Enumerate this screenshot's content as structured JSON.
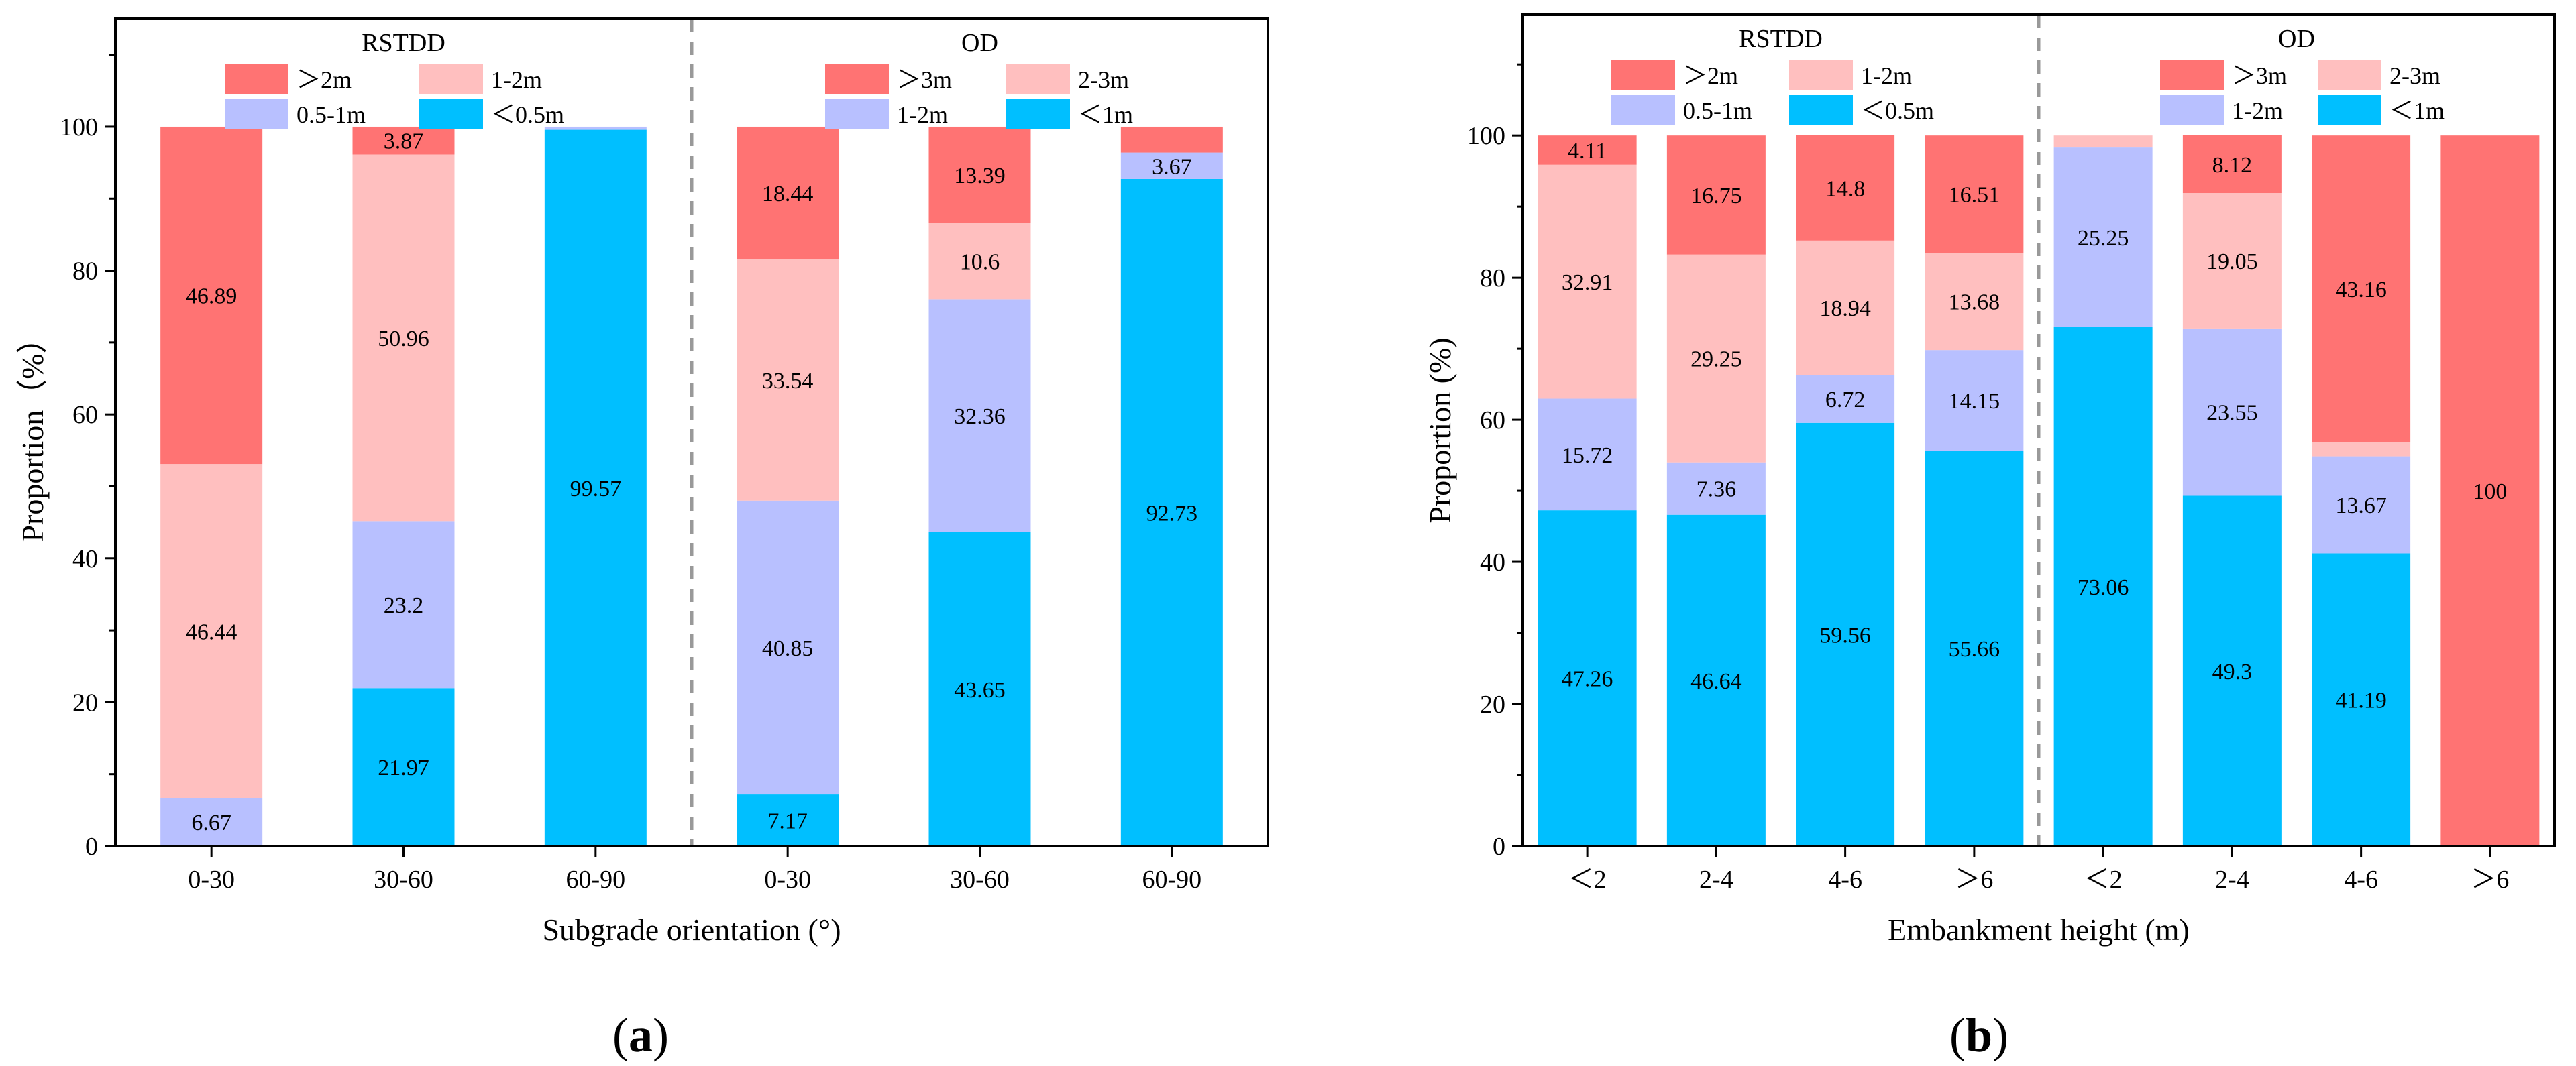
{
  "colors": {
    "red": "#ff7373",
    "pink": "#ffbfbf",
    "lavender": "#b8c0ff",
    "cyan": "#00bfff"
  },
  "chart_data": [
    {
      "id": "a",
      "type": "bar",
      "stacked": true,
      "caption_letter": "a",
      "xlabel": "Subgrade orientation (°)",
      "ylabel": "Proportion（%）",
      "ylim": [
        0,
        115
      ],
      "yticks": [
        0,
        20,
        40,
        60,
        80,
        100
      ],
      "categories": [
        "0-30",
        "30-60",
        "60-90",
        "0-30",
        "30-60",
        "60-90"
      ],
      "groups": [
        {
          "title": "RSTDD",
          "bar_indices": [
            0,
            1,
            2
          ],
          "legend": [
            {
              "label": "＞2m",
              "color": "red"
            },
            {
              "label": "1-2m",
              "color": "pink"
            },
            {
              "label": "0.5-1m",
              "color": "lavender"
            },
            {
              "label": "＜0.5m",
              "color": "cyan"
            }
          ]
        },
        {
          "title": "OD",
          "bar_indices": [
            3,
            4,
            5
          ],
          "legend": [
            {
              "label": "＞3m",
              "color": "red"
            },
            {
              "label": "2-3m",
              "color": "pink"
            },
            {
              "label": "1-2m",
              "color": "lavender"
            },
            {
              "label": "＜1m",
              "color": "cyan"
            }
          ]
        }
      ],
      "series_bottom_to_top": [
        {
          "color": "cyan",
          "values": [
            0,
            21.97,
            99.57,
            7.17,
            43.65,
            92.73
          ],
          "labels": [
            "",
            "21.97",
            "99.57",
            "7.17",
            "43.65",
            "92.73"
          ]
        },
        {
          "color": "lavender",
          "values": [
            6.67,
            23.2,
            0.43,
            40.85,
            32.36,
            3.67
          ],
          "labels": [
            "6.67",
            "23.2",
            "",
            "40.85",
            "32.36",
            "3.67"
          ]
        },
        {
          "color": "pink",
          "values": [
            46.44,
            50.96,
            0,
            33.54,
            10.6,
            0
          ],
          "labels": [
            "46.44",
            "50.96",
            "",
            "33.54",
            "10.6",
            ""
          ]
        },
        {
          "color": "red",
          "values": [
            46.89,
            3.87,
            0,
            18.44,
            13.39,
            3.6
          ],
          "labels": [
            "46.89",
            "3.87",
            "",
            "18.44",
            "13.39",
            ""
          ]
        }
      ]
    },
    {
      "id": "b",
      "type": "bar",
      "stacked": true,
      "caption_letter": "b",
      "xlabel": "Embankment height (m)",
      "ylabel": "Proportion (%)",
      "ylim": [
        0,
        117
      ],
      "yticks": [
        0,
        20,
        40,
        60,
        80,
        100
      ],
      "categories": [
        "＜2",
        "2-4",
        "4-6",
        "＞6",
        "＜2",
        "2-4",
        "4-6",
        "＞6"
      ],
      "groups": [
        {
          "title": "RSTDD",
          "bar_indices": [
            0,
            1,
            2,
            3
          ],
          "legend": [
            {
              "label": "＞2m",
              "color": "red"
            },
            {
              "label": "1-2m",
              "color": "pink"
            },
            {
              "label": "0.5-1m",
              "color": "lavender"
            },
            {
              "label": "＜0.5m",
              "color": "cyan"
            }
          ]
        },
        {
          "title": "OD",
          "bar_indices": [
            4,
            5,
            6,
            7
          ],
          "legend": [
            {
              "label": "＞3m",
              "color": "red"
            },
            {
              "label": "2-3m",
              "color": "pink"
            },
            {
              "label": "1-2m",
              "color": "lavender"
            },
            {
              "label": "＜1m",
              "color": "cyan"
            }
          ]
        }
      ],
      "series_bottom_to_top": [
        {
          "color": "cyan",
          "values": [
            47.26,
            46.64,
            59.56,
            55.66,
            73.06,
            49.3,
            41.19,
            0
          ],
          "labels": [
            "47.26",
            "46.64",
            "59.56",
            "55.66",
            "73.06",
            "49.3",
            "41.19",
            ""
          ]
        },
        {
          "color": "lavender",
          "values": [
            15.72,
            7.36,
            6.72,
            14.15,
            25.25,
            23.55,
            13.67,
            0
          ],
          "labels": [
            "15.72",
            "7.36",
            "6.72",
            "14.15",
            "25.25",
            "23.55",
            "13.67",
            ""
          ]
        },
        {
          "color": "pink",
          "values": [
            32.91,
            29.25,
            18.94,
            13.68,
            1.69,
            19.05,
            1.98,
            0
          ],
          "labels": [
            "32.91",
            "29.25",
            "18.94",
            "13.68",
            "",
            "19.05",
            "",
            ""
          ]
        },
        {
          "color": "red",
          "values": [
            4.11,
            16.75,
            14.8,
            16.51,
            0,
            8.12,
            43.16,
            100
          ],
          "labels": [
            "4.11",
            "16.75",
            "14.8",
            "16.51",
            "",
            "8.12",
            "43.16",
            "100"
          ]
        }
      ]
    }
  ]
}
